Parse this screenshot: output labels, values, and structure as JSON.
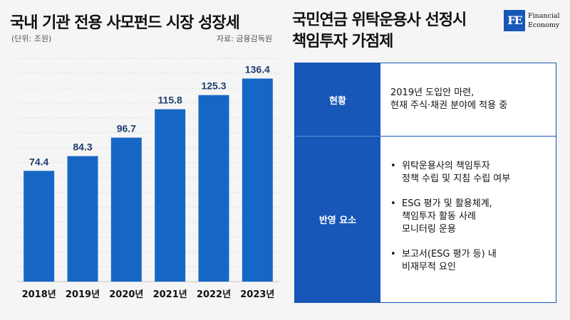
{
  "left": {
    "title": "국내 기관 전용 사모펀드 시장 성장세",
    "unit": "(단위: 조원)",
    "source": "자료: 금융감독원"
  },
  "chart_data": {
    "type": "bar",
    "categories": [
      "2018년",
      "2019년",
      "2020년",
      "2021년",
      "2022년",
      "2023년"
    ],
    "values": [
      74.4,
      84.3,
      96.7,
      115.8,
      125.3,
      136.4
    ],
    "value_labels": [
      "74.4",
      "84.3",
      "96.7",
      "115.8",
      "125.3",
      "136.4"
    ],
    "ylim": [
      0,
      150
    ],
    "grid": true,
    "bar_color": "#1667c5",
    "label_color": "#1c3e6e"
  },
  "right": {
    "title_line1": "국민연금 위탁운용사 선정시",
    "title_line2": "책임투자 가점제",
    "logo": {
      "mark": "FE",
      "line1": "Financial",
      "line2": "Economy"
    },
    "rows": [
      {
        "header": "현황",
        "lines": [
          "2019년 도입안 마련,",
          "현재 주식·채권 분야에 적용 중"
        ]
      },
      {
        "header": "반영 요소",
        "bullets": [
          {
            "dot": "•",
            "lines": [
              "위탁운용사의 책임투자",
              "정책 수립 및 지침 수립 여부"
            ]
          },
          {
            "dot": "•",
            "lines": [
              "ESG 평가 및 활용체계,",
              "책임투자 활동 사례",
              "모니터링 운용"
            ]
          },
          {
            "dot": "•",
            "lines": [
              "보고서(ESG 평가 등) 내",
              "비재무적 요인"
            ]
          }
        ]
      }
    ],
    "colors": {
      "header_bg": "#1657b8",
      "border": "#1655b4"
    }
  }
}
